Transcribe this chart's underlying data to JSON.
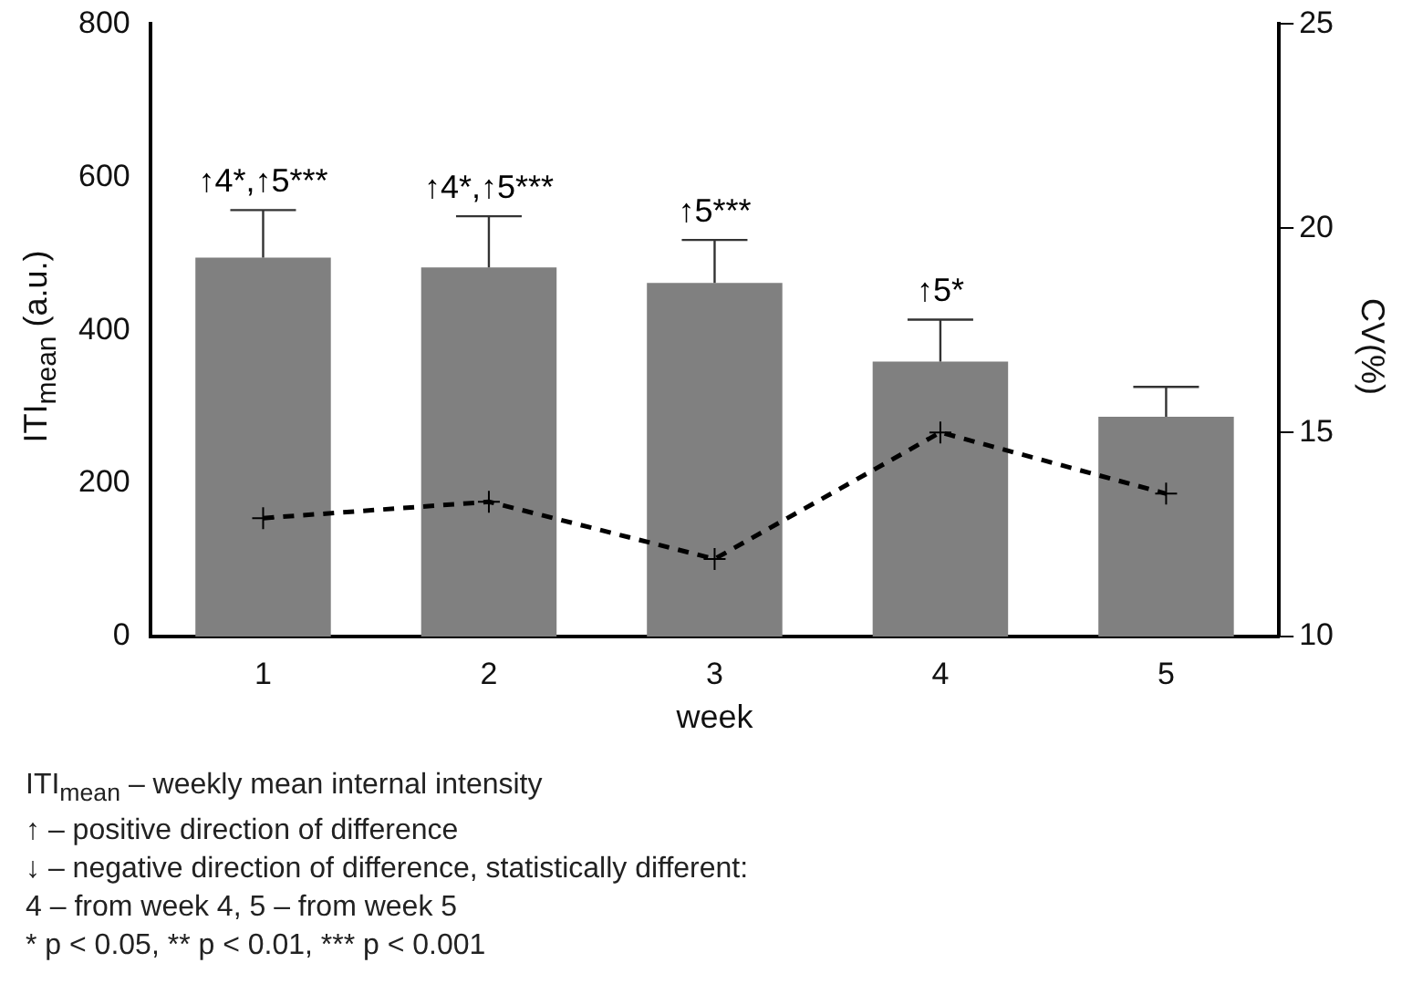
{
  "chart_data": {
    "type": "bar",
    "xlabel": "week",
    "ylabel": "ITI$_{mean}$ (a.u.)",
    "y2label": "CV(%)",
    "categories": [
      "1",
      "2",
      "3",
      "4",
      "5"
    ],
    "series": [
      {
        "color": "#808080",
        "values": [
          495,
          482,
          462,
          359,
          287
        ],
        "errors": [
          [
            495,
            557
          ],
          [
            482,
            549
          ],
          [
            462,
            518
          ],
          [
            359,
            414
          ],
          [
            287,
            326
          ]
        ]
      },
      {
        "type": "line",
        "axis": "y2",
        "color": "#000000",
        "values": [
          12.9,
          13.3,
          11.9,
          15.0,
          13.5
        ],
        "line_style": "dashed",
        "marker": "cross"
      }
    ],
    "ylim": [
      0,
      800
    ],
    "yticks": [
      0,
      200,
      400,
      600,
      800
    ],
    "y2lim": [
      10,
      25
    ],
    "y2ticks": [
      10,
      15,
      20,
      25
    ],
    "grid": false,
    "legend": false,
    "annotations": [
      {
        "text": "↑4*,↑5***",
        "x": "1",
        "y": 557
      },
      {
        "text": "↑4*,↑5***",
        "x": "2",
        "y": 549
      },
      {
        "text": "↑5***",
        "x": "3",
        "y": 518
      },
      {
        "text": "↑5*",
        "x": "4",
        "y": 414
      },
      "ITI$_{mean}$ – weekly mean internal intensity",
      "↑ – positive direction of difference",
      "↓ – negative direction of difference, statistically different:",
      "4 – from week 4, 5 – from week 5",
      "* p < 0.05, ** p < 0.01, *** p < 0.001"
    ]
  }
}
